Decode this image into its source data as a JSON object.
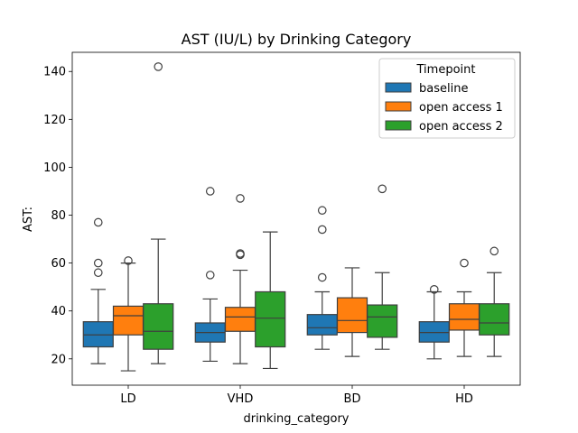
{
  "chart_data": {
    "type": "box",
    "title": "AST (IU/L) by Drinking Category",
    "xlabel": "drinking_category",
    "ylabel": "AST:",
    "ylim": [
      9,
      148
    ],
    "yticks": [
      20,
      40,
      60,
      80,
      100,
      120,
      140
    ],
    "categories": [
      "LD",
      "VHD",
      "BD",
      "HD"
    ],
    "legend": {
      "title": "Timepoint",
      "placement": "top-right"
    },
    "series": [
      {
        "name": "baseline",
        "color": "#1f77b4",
        "boxes": [
          {
            "category": "LD",
            "whisker_low": 18,
            "q1": 25,
            "median": 30,
            "q3": 35.5,
            "whisker_high": 49,
            "outliers": [
              56,
              60,
              77
            ]
          },
          {
            "category": "VHD",
            "whisker_low": 19,
            "q1": 27,
            "median": 31,
            "q3": 35,
            "whisker_high": 45,
            "outliers": [
              55,
              90
            ]
          },
          {
            "category": "BD",
            "whisker_low": 24,
            "q1": 30,
            "median": 33,
            "q3": 38.5,
            "whisker_high": 48,
            "outliers": [
              54,
              74,
              82
            ]
          },
          {
            "category": "HD",
            "whisker_low": 20,
            "q1": 27,
            "median": 31,
            "q3": 35.5,
            "whisker_high": 48,
            "outliers": [
              49
            ]
          }
        ]
      },
      {
        "name": "open access 1",
        "color": "#ff7f0e",
        "boxes": [
          {
            "category": "LD",
            "whisker_low": 15,
            "q1": 30,
            "median": 38,
            "q3": 42,
            "whisker_high": 60,
            "outliers": [
              61
            ]
          },
          {
            "category": "VHD",
            "whisker_low": 18,
            "q1": 31.5,
            "median": 37.5,
            "q3": 41.5,
            "whisker_high": 57,
            "outliers": [
              63.5,
              64,
              87
            ]
          },
          {
            "category": "BD",
            "whisker_low": 21,
            "q1": 31,
            "median": 36,
            "q3": 45.5,
            "whisker_high": 58,
            "outliers": []
          },
          {
            "category": "HD",
            "whisker_low": 21,
            "q1": 32,
            "median": 36.5,
            "q3": 43,
            "whisker_high": 48,
            "outliers": [
              60
            ]
          }
        ]
      },
      {
        "name": "open access 2",
        "color": "#2ca02c",
        "boxes": [
          {
            "category": "LD",
            "whisker_low": 18,
            "q1": 24,
            "median": 31.5,
            "q3": 43,
            "whisker_high": 70,
            "outliers": [
              142
            ]
          },
          {
            "category": "VHD",
            "whisker_low": 16,
            "q1": 25,
            "median": 37,
            "q3": 48,
            "whisker_high": 73,
            "outliers": []
          },
          {
            "category": "BD",
            "whisker_low": 24,
            "q1": 29,
            "median": 37.5,
            "q3": 42.5,
            "whisker_high": 56,
            "outliers": [
              91
            ]
          },
          {
            "category": "HD",
            "whisker_low": 21,
            "q1": 30,
            "median": 35,
            "q3": 43,
            "whisker_high": 56,
            "outliers": [
              65
            ]
          }
        ]
      }
    ]
  }
}
